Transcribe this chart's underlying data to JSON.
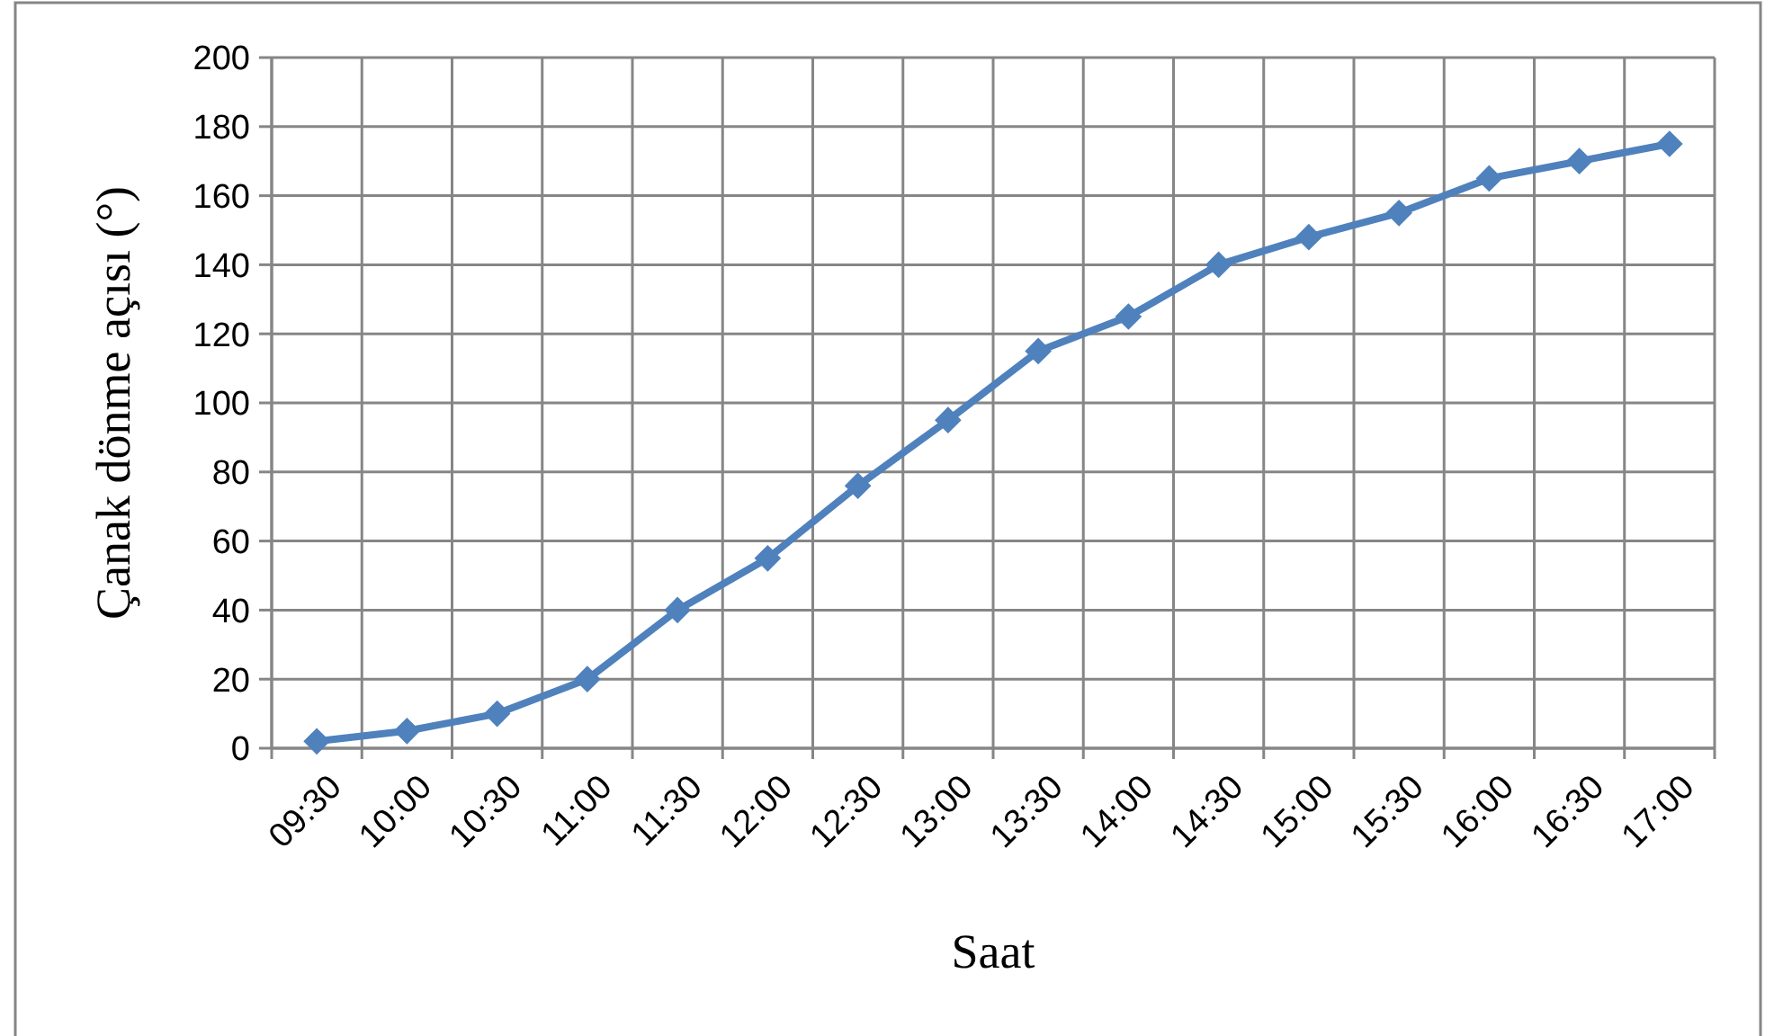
{
  "chart_data": {
    "type": "line",
    "xlabel": "Saat",
    "ylabel": "Çanak dönme açısı (°)",
    "categories": [
      "09:30",
      "10:00",
      "10:30",
      "11:00",
      "11:30",
      "12:00",
      "12:30",
      "13:00",
      "13:30",
      "14:00",
      "14:30",
      "15:00",
      "15:30",
      "16:00",
      "16:30",
      "17:00"
    ],
    "values": [
      2,
      5,
      10,
      20,
      40,
      55,
      76,
      95,
      115,
      125,
      140,
      148,
      155,
      165,
      170,
      175
    ],
    "color": "#4f81bd",
    "ylim": [
      0,
      200
    ],
    "yticks": [
      0,
      20,
      40,
      60,
      80,
      100,
      120,
      140,
      160,
      180,
      200
    ],
    "grid": true,
    "marker": "diamond",
    "line_style": "solid"
  }
}
